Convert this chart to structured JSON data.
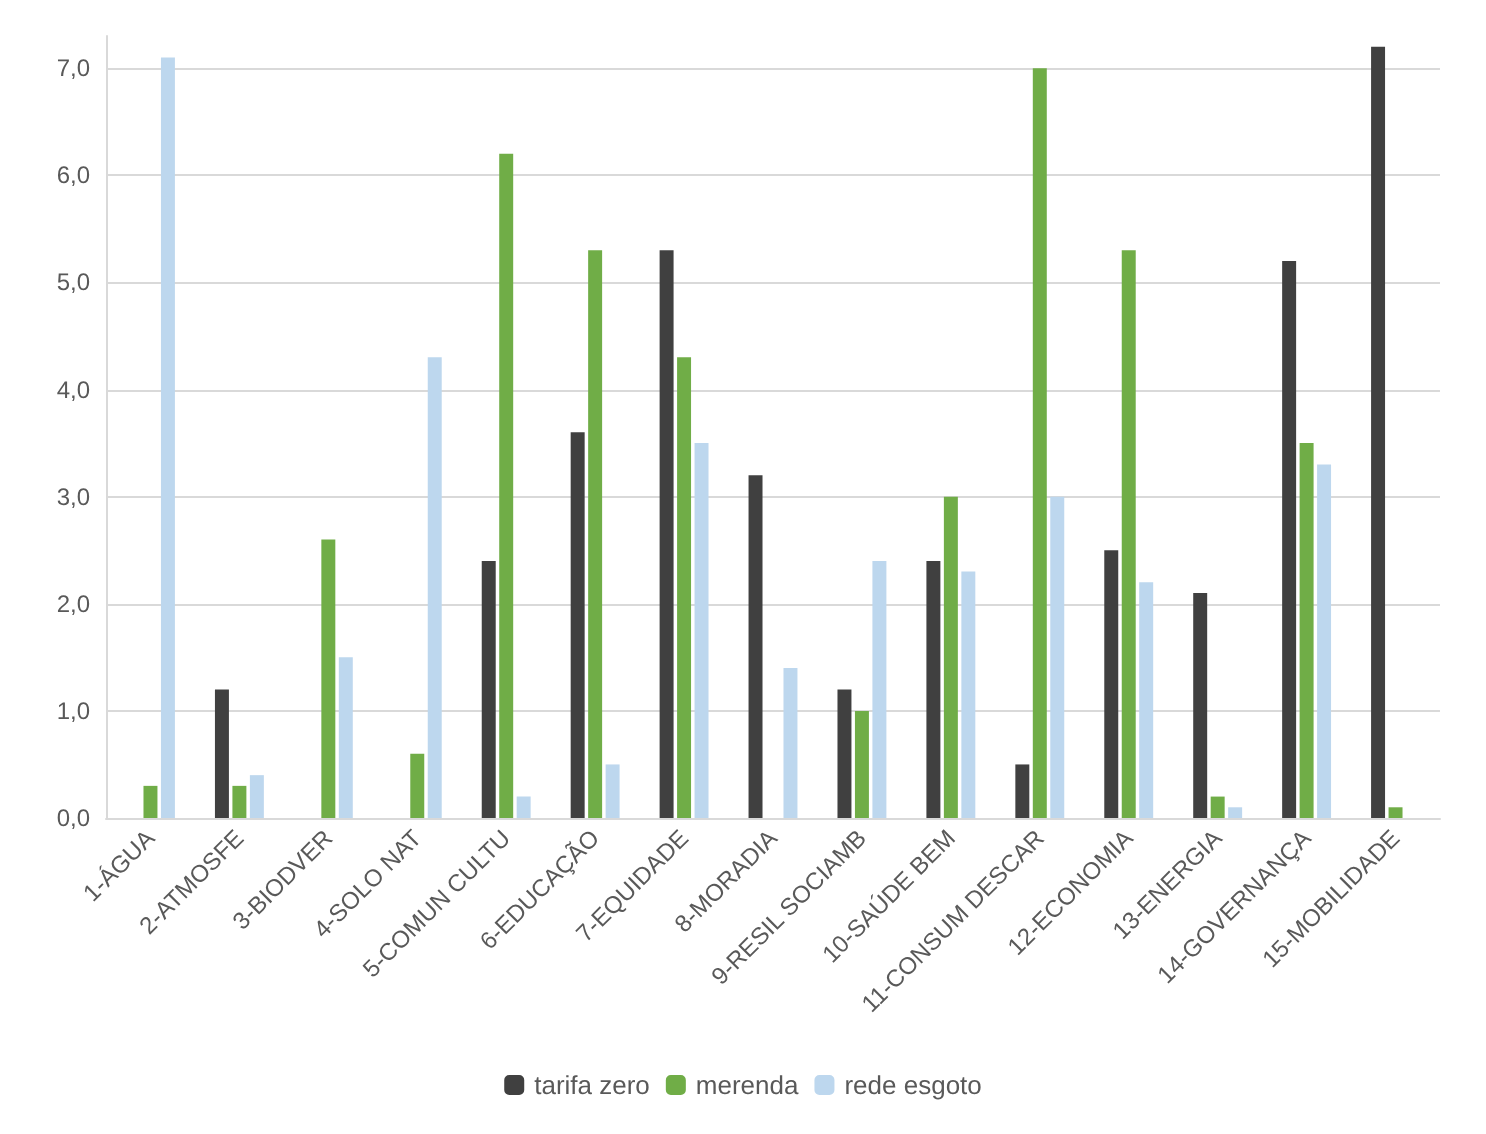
{
  "chart_data": {
    "type": "bar",
    "categories": [
      "1-ÁGUA",
      "2-ATMOSFE",
      "3-BIODVER",
      "4-SOLO NAT",
      "5-COMUN CULTU",
      "6-EDUCAÇÃO",
      "7-EQUIDADE",
      "8-MORADIA",
      "9-RESIL SOCIAMB",
      "10-SAÚDE BEM",
      "11-CONSUM DESCAR",
      "12-ECONOMIA",
      "13-ENERGIA",
      "14-GOVERNANÇA",
      "15-MOBILIDADE"
    ],
    "series": [
      {
        "name": "tarifa zero",
        "color": "#404040",
        "values": [
          0,
          1.2,
          0,
          0,
          2.4,
          3.6,
          5.3,
          3.2,
          1.2,
          2.4,
          0.5,
          2.5,
          2.1,
          5.2,
          7.2
        ]
      },
      {
        "name": "merenda",
        "color": "#70ad47",
        "values": [
          0.3,
          0.3,
          2.6,
          0.6,
          6.2,
          5.3,
          4.3,
          0,
          1.0,
          3.0,
          7.0,
          5.3,
          0.2,
          3.5,
          0.1
        ]
      },
      {
        "name": "rede esgoto",
        "color": "#bdd7ee",
        "values": [
          7.1,
          0.4,
          1.5,
          4.3,
          0.2,
          0.5,
          3.5,
          1.4,
          2.4,
          2.3,
          3.0,
          2.2,
          0.1,
          3.3,
          0
        ]
      }
    ],
    "ylim": [
      0,
      7.3
    ],
    "yticks": [
      {
        "value": 0,
        "label": "0,0"
      },
      {
        "value": 1,
        "label": "1,0"
      },
      {
        "value": 2,
        "label": "2,0"
      },
      {
        "value": 3,
        "label": "3,0"
      },
      {
        "value": 4,
        "label": "4,0"
      },
      {
        "value": 5,
        "label": "5,0"
      },
      {
        "value": 6,
        "label": "6,0"
      },
      {
        "value": 7,
        "label": "7,0"
      }
    ],
    "grid": "y",
    "legend": "bottom"
  }
}
